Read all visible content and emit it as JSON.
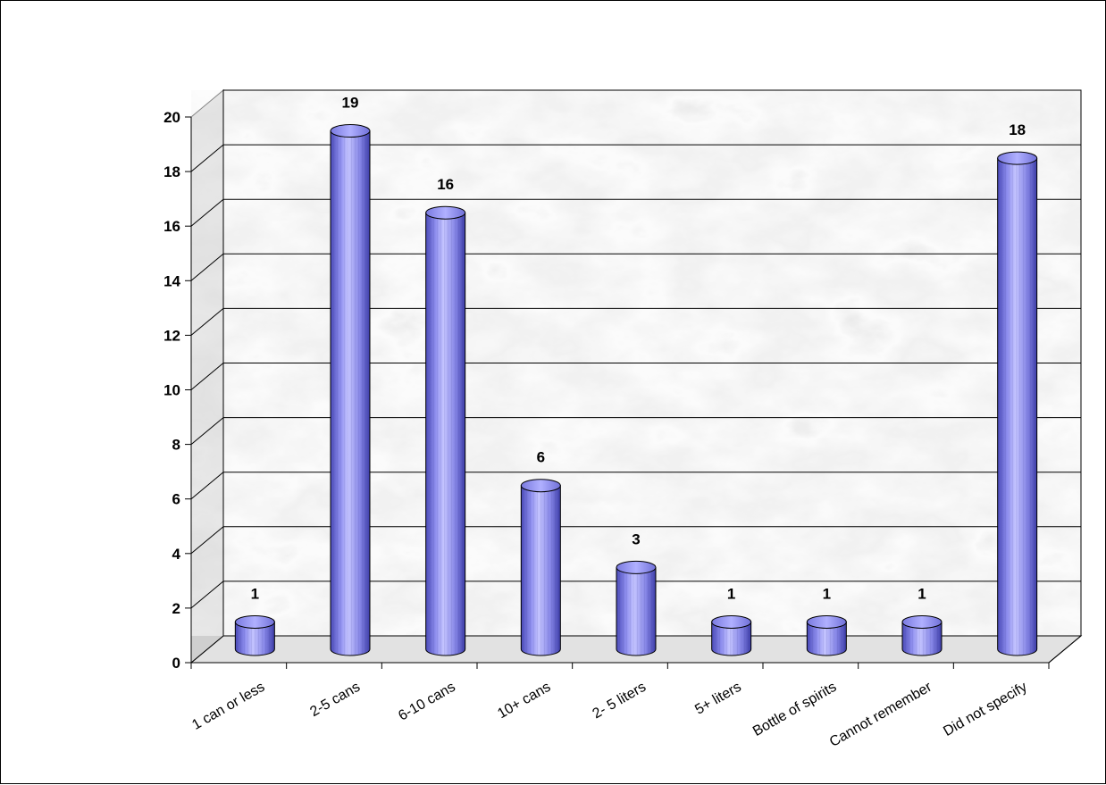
{
  "chart_data": {
    "type": "bar",
    "style": "3d-cylinder",
    "categories": [
      "1 can or less",
      "2-5 cans",
      "6-10 cans",
      "10+ cans",
      "2- 5 liters",
      "5+ liters",
      "Bottle of spirits",
      "Cannot remember",
      "Did not specify"
    ],
    "values": [
      1,
      19,
      16,
      6,
      3,
      1,
      1,
      1,
      18
    ],
    "data_labels": [
      "1",
      "19",
      "16",
      "6",
      "3",
      "1",
      "1",
      "1",
      "18"
    ],
    "ylim": [
      0,
      20
    ],
    "y_ticks": [
      "0",
      "2",
      "4",
      "6",
      "8",
      "10",
      "12",
      "14",
      "16",
      "18",
      "20"
    ],
    "grid": true,
    "legend": "none",
    "colors": {
      "bar": "#8f8fef",
      "bar_dark": "#4a4ab8",
      "bar_light": "#c4c4ff",
      "wall": "#e6e6e6",
      "gridline": "#000000"
    }
  }
}
